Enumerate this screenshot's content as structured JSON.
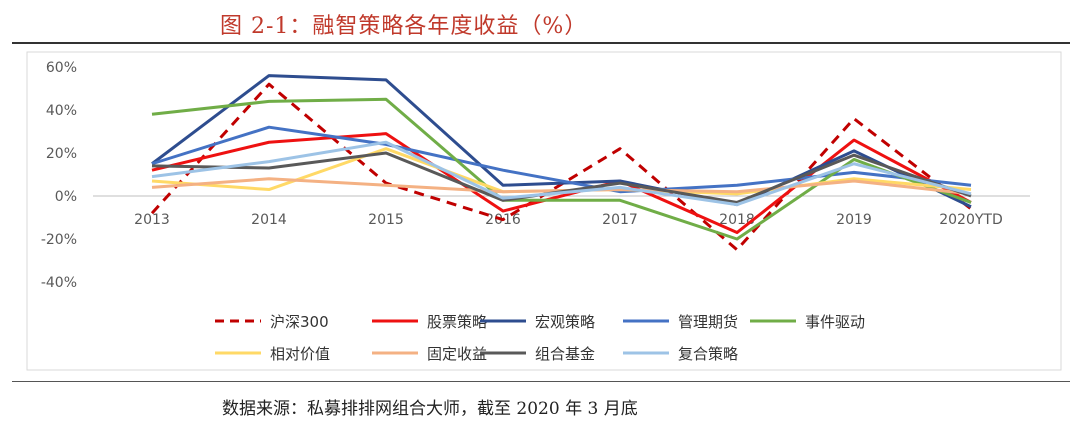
{
  "page": {
    "title": "图 2-1：融智策略各年度收益（%）",
    "source": "数据来源：私募排排网组合大师，截至 2020 年 3 月底"
  },
  "chart_data": {
    "type": "line",
    "categories": [
      "2013",
      "2014",
      "2015",
      "2016",
      "2017",
      "2018",
      "2019",
      "2020YTD"
    ],
    "y_ticks": [
      "60%",
      "40%",
      "20%",
      "0%",
      "-20%",
      "-40%"
    ],
    "y_tick_values": [
      60,
      40,
      20,
      0,
      -20,
      -40
    ],
    "ylim": [
      -40,
      60
    ],
    "grid": false,
    "legend_position": "bottom",
    "series": [
      {
        "name": "沪深300",
        "color": "#c00000",
        "dashed": true,
        "values": [
          -8,
          52,
          6,
          -11,
          22,
          -25,
          36,
          -6
        ]
      },
      {
        "name": "股票策略",
        "color": "#ee1111",
        "dashed": false,
        "values": [
          12,
          25,
          29,
          -7,
          7,
          -17,
          26,
          -3
        ]
      },
      {
        "name": "宏观策略",
        "color": "#2e4d8f",
        "dashed": false,
        "values": [
          15,
          56,
          54,
          5,
          7,
          -4,
          21,
          -5
        ]
      },
      {
        "name": "管理期货",
        "color": "#4472c4",
        "dashed": false,
        "values": [
          15,
          32,
          24,
          12,
          2,
          5,
          11,
          5
        ]
      },
      {
        "name": "事件驱动",
        "color": "#70ad47",
        "dashed": false,
        "values": [
          38,
          44,
          45,
          -2,
          -2,
          -20,
          17,
          -3
        ]
      },
      {
        "name": "相对价值",
        "color": "#ffd966",
        "dashed": false,
        "values": [
          7,
          3,
          22,
          2,
          3,
          1,
          8,
          3
        ]
      },
      {
        "name": "固定收益",
        "color": "#f4b183",
        "dashed": false,
        "values": [
          4,
          8,
          5,
          2,
          3,
          2,
          7,
          1
        ]
      },
      {
        "name": "组合基金",
        "color": "#595959",
        "dashed": false,
        "values": [
          14,
          13,
          20,
          -2,
          6,
          -3,
          19,
          0
        ]
      },
      {
        "name": "复合策略",
        "color": "#9dc3e6",
        "dashed": false,
        "values": [
          9,
          16,
          25,
          -1,
          4,
          -4,
          15,
          1
        ]
      }
    ]
  }
}
